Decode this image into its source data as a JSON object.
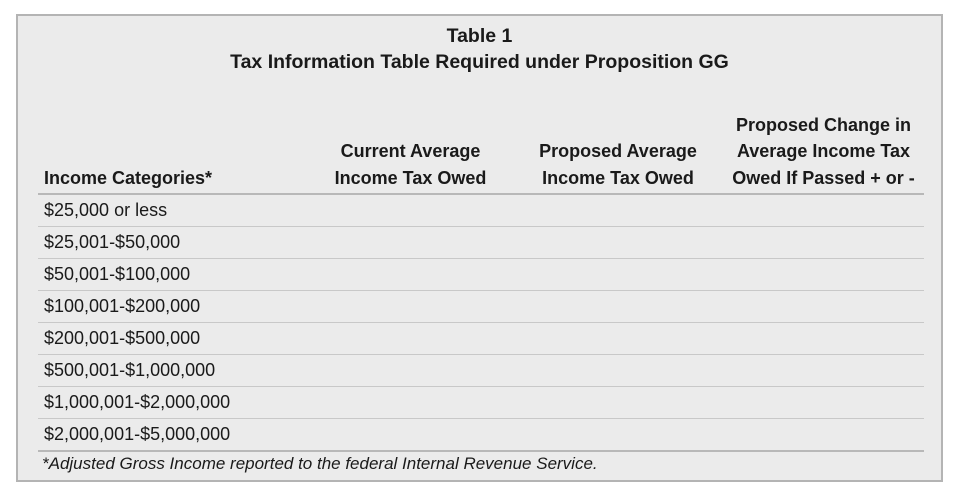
{
  "table": {
    "caption": "Table 1",
    "title": "Tax Information Table Required under Proposition GG",
    "columns": [
      "Income Categories*",
      "Current Average Income Tax Owed",
      "Proposed Average Income Tax Owed",
      "Proposed Change in Average Income Tax Owed If Passed + or -"
    ],
    "rows": [
      "$25,000 or less",
      "$25,001-$50,000",
      "$50,001-$100,000",
      "$100,001-$200,000",
      "$200,001-$500,000",
      "$500,001-$1,000,000",
      "$1,000,001-$2,000,000",
      "$2,000,001-$5,000,000"
    ],
    "footnote": "*Adjusted Gross Income reported to the federal Internal Revenue Service."
  }
}
